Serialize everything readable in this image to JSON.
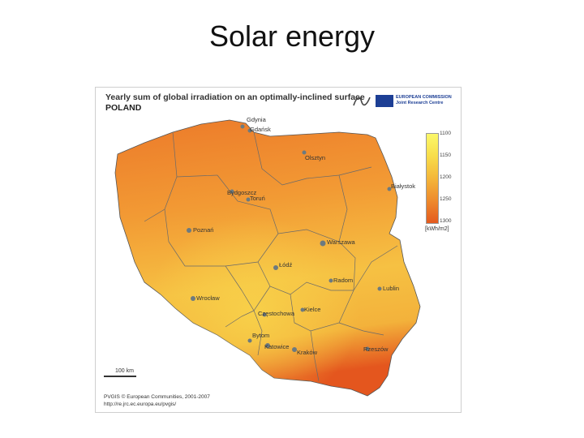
{
  "slide": {
    "title": "Solar energy"
  },
  "map": {
    "title": "Yearly sum of global irradiation on an optimally-inclined surface",
    "subtitle": "POLAND",
    "org": {
      "line1": "EUROPEAN COMMISSION",
      "line2": "Joint Research Centre"
    },
    "legend": {
      "ticks": [
        "1100",
        "1150",
        "1200",
        "1250",
        "1300"
      ],
      "unit": "[kWh/m2]",
      "color_low": "#fbf86a",
      "color_high": "#e45a1e"
    },
    "cities": [
      "Gdynia",
      "Gdańsk",
      "Olsztyn",
      "Białystok",
      "Bydgoszcz",
      "Toruń",
      "Poznań",
      "Warszawa",
      "Łódź",
      "Radom",
      "Lublin",
      "Wrocław",
      "Kielce",
      "Częstochowa",
      "Bytom",
      "Katowice",
      "Kraków",
      "Rzeszów"
    ],
    "scale_label": "100 km",
    "credit_1": "PVGIS © European Communities, 2001-2007",
    "credit_2": "http://re.jrc.ec.europa.eu/pvgis/"
  }
}
